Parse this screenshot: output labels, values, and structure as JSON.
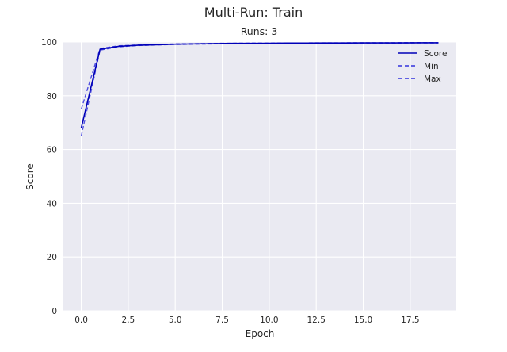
{
  "colors": {
    "plot_bg": "#EAEAF2",
    "grid": "#FFFFFF",
    "score": "#0000B8",
    "band": "#3333DD",
    "text": "#262626"
  },
  "chart_data": {
    "type": "line",
    "title": "Multi-Run: Train",
    "subtitle": "Runs: 3",
    "xlabel": "Epoch",
    "ylabel": "Score",
    "xlim": [
      -0.95,
      19.95
    ],
    "ylim": [
      0,
      100
    ],
    "xticks": [
      0.0,
      2.5,
      5.0,
      7.5,
      10.0,
      12.5,
      15.0,
      17.5
    ],
    "xtick_labels": [
      "0.0",
      "2.5",
      "5.0",
      "7.5",
      "10.0",
      "12.5",
      "15.0",
      "17.5"
    ],
    "yticks": [
      0,
      20,
      40,
      60,
      80,
      100
    ],
    "ytick_labels": [
      "0",
      "20",
      "40",
      "60",
      "80",
      "100"
    ],
    "grid": true,
    "legend": "upper-right",
    "x": [
      0,
      1,
      2,
      3,
      4,
      5,
      6,
      7,
      8,
      9,
      10,
      11,
      12,
      13,
      14,
      15,
      16,
      17,
      18,
      19
    ],
    "series": [
      {
        "name": "Score",
        "style": "solid",
        "values": [
          68.0,
          97.3,
          98.4,
          98.8,
          99.0,
          99.2,
          99.3,
          99.4,
          99.5,
          99.5,
          99.55,
          99.6,
          99.6,
          99.65,
          99.65,
          99.7,
          99.7,
          99.7,
          99.72,
          99.72
        ]
      },
      {
        "name": "Min",
        "style": "dashed",
        "values": [
          65.0,
          97.0,
          98.2,
          98.7,
          98.9,
          99.1,
          99.2,
          99.3,
          99.4,
          99.45,
          99.5,
          99.55,
          99.55,
          99.6,
          99.6,
          99.65,
          99.65,
          99.67,
          99.68,
          99.7
        ]
      },
      {
        "name": "Max",
        "style": "dashed",
        "values": [
          75.0,
          97.6,
          98.6,
          98.9,
          99.1,
          99.3,
          99.4,
          99.5,
          99.55,
          99.6,
          99.62,
          99.65,
          99.66,
          99.7,
          99.7,
          99.72,
          99.73,
          99.74,
          99.75,
          99.76
        ]
      }
    ]
  }
}
